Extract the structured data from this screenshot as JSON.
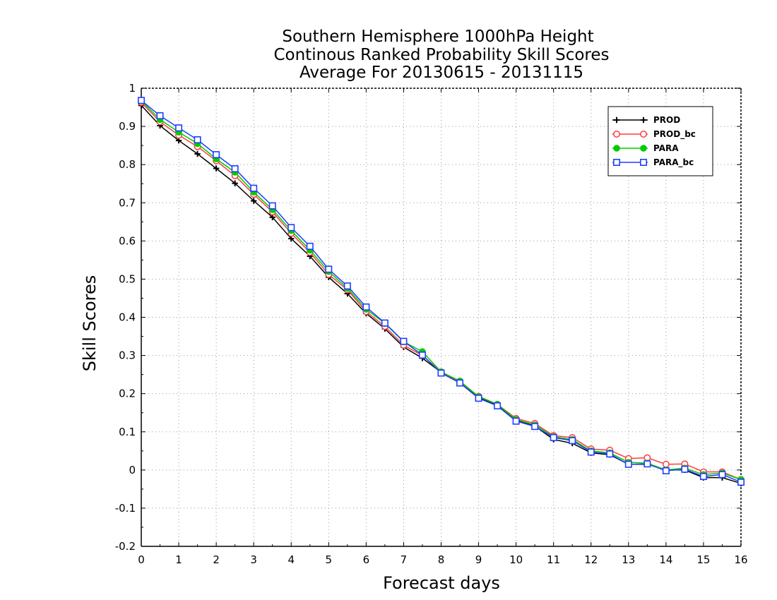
{
  "chart_data": {
    "type": "line",
    "title_lines": [
      "Southern Hemisphere 1000hPa Height",
      "Continous Ranked Probability Skill Scores",
      "Average For 20130615 - 20131115"
    ],
    "xlabel": "Forecast days",
    "ylabel": "Skill Scores",
    "xlim": [
      0,
      16
    ],
    "ylim": [
      -0.2,
      1
    ],
    "xticks": [
      "0",
      "1",
      "2",
      "3",
      "4",
      "5",
      "6",
      "7",
      "8",
      "9",
      "10",
      "11",
      "12",
      "13",
      "14",
      "15",
      "16"
    ],
    "yticks": [
      "-0.2",
      "-0.1",
      "0",
      "0.1",
      "0.2",
      "0.3",
      "0.4",
      "0.5",
      "0.6",
      "0.7",
      "0.8",
      "0.9",
      "1"
    ],
    "grid": true,
    "legend_position": "top-right",
    "x": [
      0,
      0.5,
      1,
      1.5,
      2,
      2.5,
      3,
      3.5,
      4,
      4.5,
      5,
      5.5,
      6,
      6.5,
      7,
      7.5,
      8,
      8.5,
      9,
      9.5,
      10,
      10.5,
      11,
      11.5,
      12,
      12.5,
      13,
      13.5,
      14,
      14.5,
      15,
      15.5,
      16
    ],
    "series": [
      {
        "name": "PROD",
        "color": "#000000",
        "marker": "plus",
        "values": [
          0.955,
          0.902,
          0.863,
          0.828,
          0.79,
          0.751,
          0.705,
          0.662,
          0.606,
          0.56,
          0.505,
          0.462,
          0.41,
          0.37,
          0.322,
          0.293,
          0.256,
          0.23,
          0.19,
          0.17,
          0.13,
          0.115,
          0.08,
          0.07,
          0.045,
          0.04,
          0.015,
          0.015,
          0.0,
          0.0,
          -0.02,
          -0.02,
          -0.035
        ]
      },
      {
        "name": "PROD_bc",
        "color": "#ff3b3b",
        "marker": "circle",
        "values": [
          0.963,
          0.912,
          0.877,
          0.847,
          0.81,
          0.771,
          0.722,
          0.676,
          0.62,
          0.57,
          0.512,
          0.472,
          0.415,
          0.376,
          0.327,
          0.3,
          0.257,
          0.231,
          0.193,
          0.172,
          0.135,
          0.122,
          0.09,
          0.085,
          0.055,
          0.052,
          0.03,
          0.032,
          0.015,
          0.016,
          -0.005,
          -0.005,
          -0.025
        ]
      },
      {
        "name": "PARA",
        "color": "#00cc00",
        "marker": "filled-circle",
        "values": [
          0.967,
          0.918,
          0.885,
          0.855,
          0.815,
          0.78,
          0.728,
          0.682,
          0.627,
          0.576,
          0.52,
          0.476,
          0.421,
          0.384,
          0.336,
          0.31,
          0.257,
          0.233,
          0.192,
          0.172,
          0.132,
          0.118,
          0.087,
          0.08,
          0.05,
          0.045,
          0.02,
          0.018,
          0.0,
          0.005,
          -0.012,
          -0.008,
          -0.025
        ]
      },
      {
        "name": "PARA_bc",
        "color": "#1f3fff",
        "marker": "square",
        "values": [
          0.968,
          0.928,
          0.896,
          0.865,
          0.826,
          0.789,
          0.738,
          0.692,
          0.635,
          0.586,
          0.526,
          0.482,
          0.427,
          0.385,
          0.337,
          0.301,
          0.254,
          0.228,
          0.188,
          0.168,
          0.128,
          0.114,
          0.085,
          0.077,
          0.047,
          0.042,
          0.015,
          0.016,
          -0.002,
          0.002,
          -0.017,
          -0.012,
          -0.032
        ]
      }
    ]
  }
}
